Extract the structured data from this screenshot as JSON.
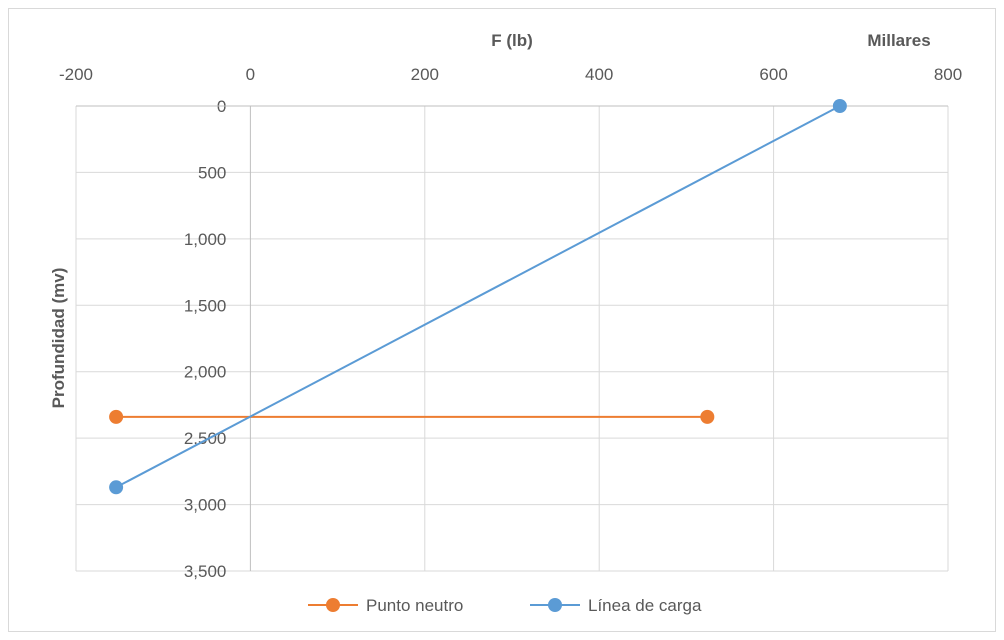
{
  "chart_data": {
    "type": "scatter",
    "xlabel": "F (lb)",
    "x_unit_label": "Millares",
    "ylabel": "Profundidad (mv)",
    "xlim": [
      -200,
      800
    ],
    "ylim": [
      0,
      3500
    ],
    "y_reversed": true,
    "x_axis_position": "top",
    "x_ticks": [
      "-200",
      "0",
      "200",
      "400",
      "600",
      "800"
    ],
    "y_ticks": [
      "0",
      "500",
      "1,000",
      "1,500",
      "2,000",
      "2,500",
      "3,000",
      "3,500"
    ],
    "grid": true,
    "legend_position": "bottom",
    "series": [
      {
        "name": "Punto neutro",
        "color": "#ed7d31",
        "points": [
          {
            "x": -154,
            "y": 2340
          },
          {
            "x": 524,
            "y": 2340
          }
        ]
      },
      {
        "name": "Línea de carga",
        "color": "#5b9bd5",
        "points": [
          {
            "x": -154,
            "y": 2870
          },
          {
            "x": 676,
            "y": 0
          }
        ]
      }
    ]
  }
}
